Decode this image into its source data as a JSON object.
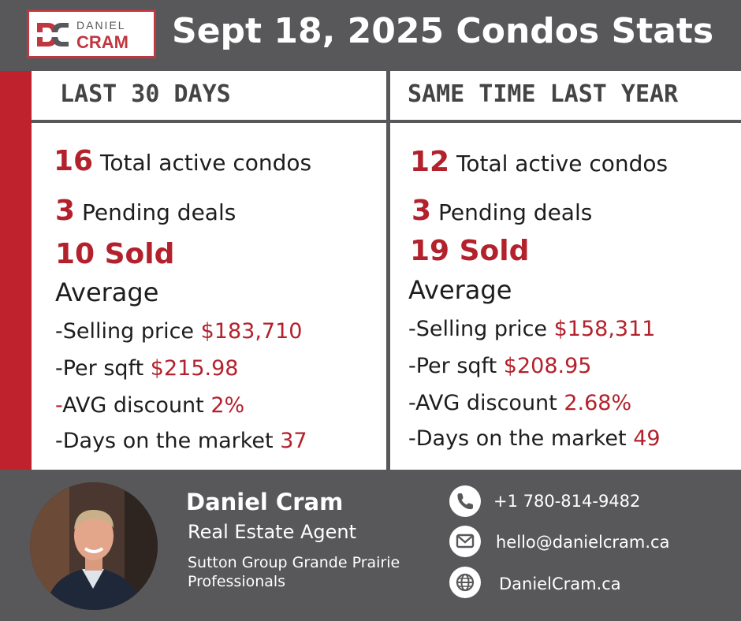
{
  "brand": {
    "logo_first": "DANIEL",
    "logo_last": "CRAM",
    "accent": "#c0222d",
    "gray": "#58585a"
  },
  "header": {
    "title": "Sept 18, 2025 Condos Stats"
  },
  "left": {
    "heading": "LAST 30 DAYS",
    "active_count": "16",
    "active_label": "Total active condos",
    "pending_count": "3",
    "pending_label": "Pending deals",
    "sold": "10 Sold",
    "avg_title": "Average",
    "selling_label": "-Selling price",
    "selling_value": "$183,710",
    "sqft_label": "-Per sqft",
    "sqft_value": "$215.98",
    "discount_dash": "-",
    "discount_label": "AVG discount",
    "discount_value": "2%",
    "days_label": "-Days on the market",
    "days_value": "37"
  },
  "right": {
    "heading": "SAME TIME LAST YEAR",
    "active_count": "12",
    "active_label": "Total active condos",
    "pending_count": "3",
    "pending_label": "Pending deals",
    "sold": "19 Sold",
    "avg_title": "Average",
    "selling_label": "-Selling price",
    "selling_value": "$158,311",
    "sqft_label": "-Per sqft",
    "sqft_value": "$208.95",
    "discount_label": "-AVG discount",
    "discount_value": "2.68%",
    "days_label": "-Days on the market",
    "days_value": "49"
  },
  "agent": {
    "name": "Daniel Cram",
    "role": "Real Estate Agent",
    "company_line1": "Sutton Group Grande Prairie",
    "company_line2": "Professionals"
  },
  "contact": {
    "phone": "+1 780-814-9482",
    "phone_icon": "phone-icon",
    "email": "hello@danielcram.ca",
    "email_icon": "mail-icon",
    "website": "DanielCram.ca",
    "website_icon": "globe-icon"
  }
}
